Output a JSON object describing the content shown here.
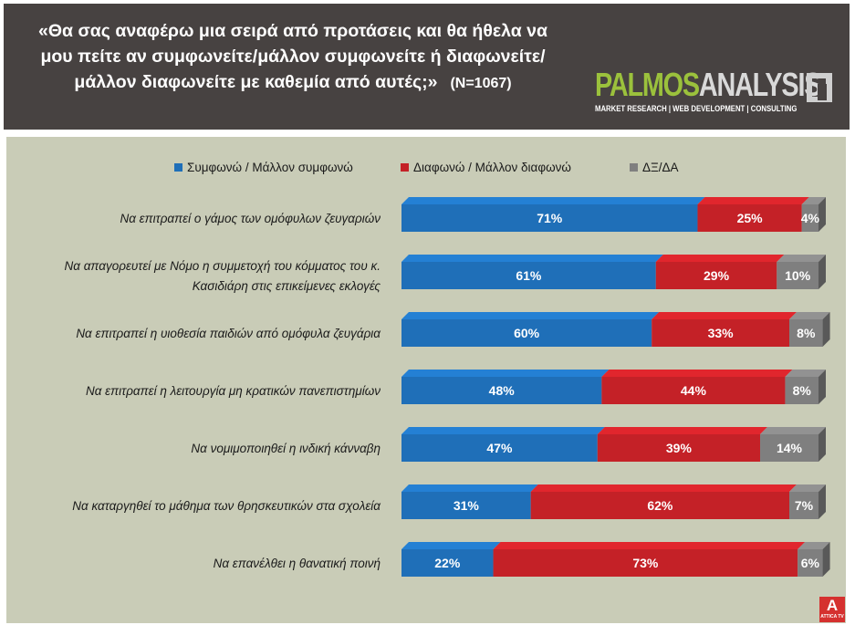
{
  "header": {
    "question": "«Θα σας αναφέρω μια σειρά από προτάσεις και θα ήθελα να μου πείτε αν συμφωνείτε/μάλλον συμφωνείτε ή διαφωνείτε/ μάλλον διαφωνείτε με καθεμία από αυτές;»",
    "sample": "(N=1067)"
  },
  "logo": {
    "name_part1": "PALMOS",
    "name_part2": "ANALYSIS",
    "tagline": "MARKET RESEARCH | WEB DEVELOPMENT | CONSULTING"
  },
  "watermark": {
    "mark": "A",
    "text": "ATTICA TV"
  },
  "colors": {
    "agree": "#1f6fb8",
    "disagree": "#c42127",
    "dk": "#7f7f7f",
    "panel": "#c9ccb7",
    "header": "#474241"
  },
  "chart_data": {
    "type": "bar",
    "orientation": "horizontal",
    "stacked": true,
    "percent_stacked": true,
    "xlim": [
      0,
      100
    ],
    "grid": false,
    "legend_position": "top",
    "categories": [
      "Να επιτραπεί ο γάμος των ομόφυλων ζευγαριών",
      "Να απαγορευτεί με Νόμο η συμμετοχή του κόμματος του κ. Κασιδιάρη στις επικείμενες εκλογές",
      "Να επιτραπεί η υιοθεσία παιδιών από ομόφυλα ζευγάρια",
      "Να επιτραπεί η λειτουργία μη κρατικών πανεπιστημίων",
      "Να νομιμοποιηθεί η ινδική κάνναβη",
      "Να καταργηθεί το μάθημα των θρησκευτικών στα σχολεία",
      "Να επανέλθει η θανατική ποινή"
    ],
    "category_lines": [
      [
        "Να επιτραπεί ο γάμος των ομόφυλων ζευγαριών"
      ],
      [
        "Να απαγορευτεί με Νόμο η συμμετοχή του κόμματος του κ.",
        "Κασιδιάρη στις επικείμενες εκλογές"
      ],
      [
        "Να επιτραπεί η υιοθεσία παιδιών από ομόφυλα ζευγάρια"
      ],
      [
        "Να επιτραπεί η λειτουργία μη κρατικών πανεπιστημίων"
      ],
      [
        "Να νομιμοποιηθεί η ινδική κάνναβη"
      ],
      [
        "Να καταργηθεί το μάθημα των θρησκευτικών στα σχολεία"
      ],
      [
        "Να επανέλθει η θανατική ποινή"
      ]
    ],
    "series": [
      {
        "name": "Συμφωνώ / Μάλλον συμφωνώ",
        "color": "#1f6fb8",
        "values": [
          71,
          61,
          60,
          48,
          47,
          31,
          22
        ]
      },
      {
        "name": "Διαφωνώ / Μάλλον διαφωνώ",
        "color": "#c42127",
        "values": [
          25,
          29,
          33,
          44,
          39,
          62,
          73
        ]
      },
      {
        "name": "ΔΞ/ΔΑ",
        "color": "#7f7f7f",
        "values": [
          4,
          10,
          8,
          8,
          14,
          7,
          6
        ]
      }
    ],
    "value_suffix": "%"
  }
}
